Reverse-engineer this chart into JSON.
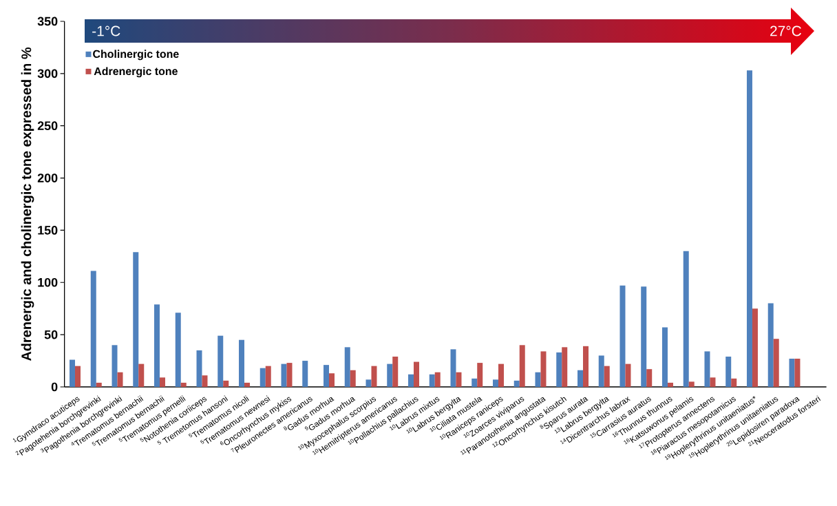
{
  "chart_data": {
    "type": "bar",
    "ylabel": "Adrenergic and cholinergic tone expressed in %",
    "annotations": [
      "-1°C",
      "27°C"
    ],
    "categories": [
      "$^{1}$Gymdraco acuticeps",
      "$^{2}$Pagotehenia borchgrevinki",
      "$^{3}$Pagothenia borchgrevinki",
      "$^{4}$Trematomus bernachii",
      "$^{5}$Trematomus bernachii",
      "$^{5}$Trematomus pernelli",
      "$^{5}$Notothenia coriiceps",
      "$^{5}$ Tremetomus hansoni",
      "$^{5}$Trematomus nicoli",
      "$^{5}$Trematomus newnesi",
      "$^{6}$Oncorhynchus mykiss",
      "$^{7}$Pleuronectes americanus",
      "$^{8}$Gadus morhua",
      "$^{9}$Gadus morhua",
      "$^{10}$Myxocephalus scorpius",
      "$^{10}$Hemitripterus americanus",
      "$^{10}$Pollachius pallachius",
      "$^{10}$Labrus mixtus",
      "$^{10}$Labrus bergylta",
      "$^{10}$Ciliata mustela",
      "$^{10}$Raniceps raniceps",
      "$^{10}$Zoarces viviparus",
      "$^{11}$Paranotothenia angustata",
      "$^{12}$Oncorhynchus kisutch",
      "$^{8}$Sparus aurata",
      "$^{13}$Labrus bergylta",
      "$^{14}$Dicentrarchus labrax",
      "$^{15}$Carrasius auratus",
      "$^{16}$Thunnus thunnus",
      "$^{16}$Katsuwonus pelamis",
      "$^{17}$Protopterus annectens",
      "$^{18}$Piaractus mesopotamicus",
      "$^{19}$Hoplerythrinus unitaeniatus*",
      "$^{19}$Hoplerythrinus unitaeniatus",
      "$^{20}$Lepidosiren paradoxa",
      "$^{21}$Neoceratodus forsteri"
    ],
    "series": [
      {
        "name": "Cholinergic tone",
        "color": "#4f81bd",
        "values": [
          26,
          111,
          40,
          129,
          79,
          71,
          35,
          49,
          45,
          18,
          22,
          25,
          21,
          38,
          7,
          22,
          12,
          12,
          36,
          8,
          7,
          6,
          14,
          33,
          16,
          30,
          97,
          96,
          57,
          130,
          34,
          29,
          303,
          80,
          27,
          null
        ]
      },
      {
        "name": "Adrenergic tone",
        "color": "#c0504d",
        "values": [
          20,
          4,
          14,
          22,
          9,
          4,
          11,
          6,
          4,
          20,
          23,
          null,
          13,
          16,
          20,
          29,
          24,
          14,
          14,
          23,
          22,
          40,
          34,
          38,
          39,
          20,
          22,
          17,
          4,
          5,
          9,
          8,
          75,
          46,
          27,
          null
        ]
      }
    ],
    "ylim": [
      0,
      350
    ],
    "yticks": [
      0,
      50,
      100,
      150,
      200,
      250,
      300,
      350
    ],
    "legend": "top left"
  }
}
